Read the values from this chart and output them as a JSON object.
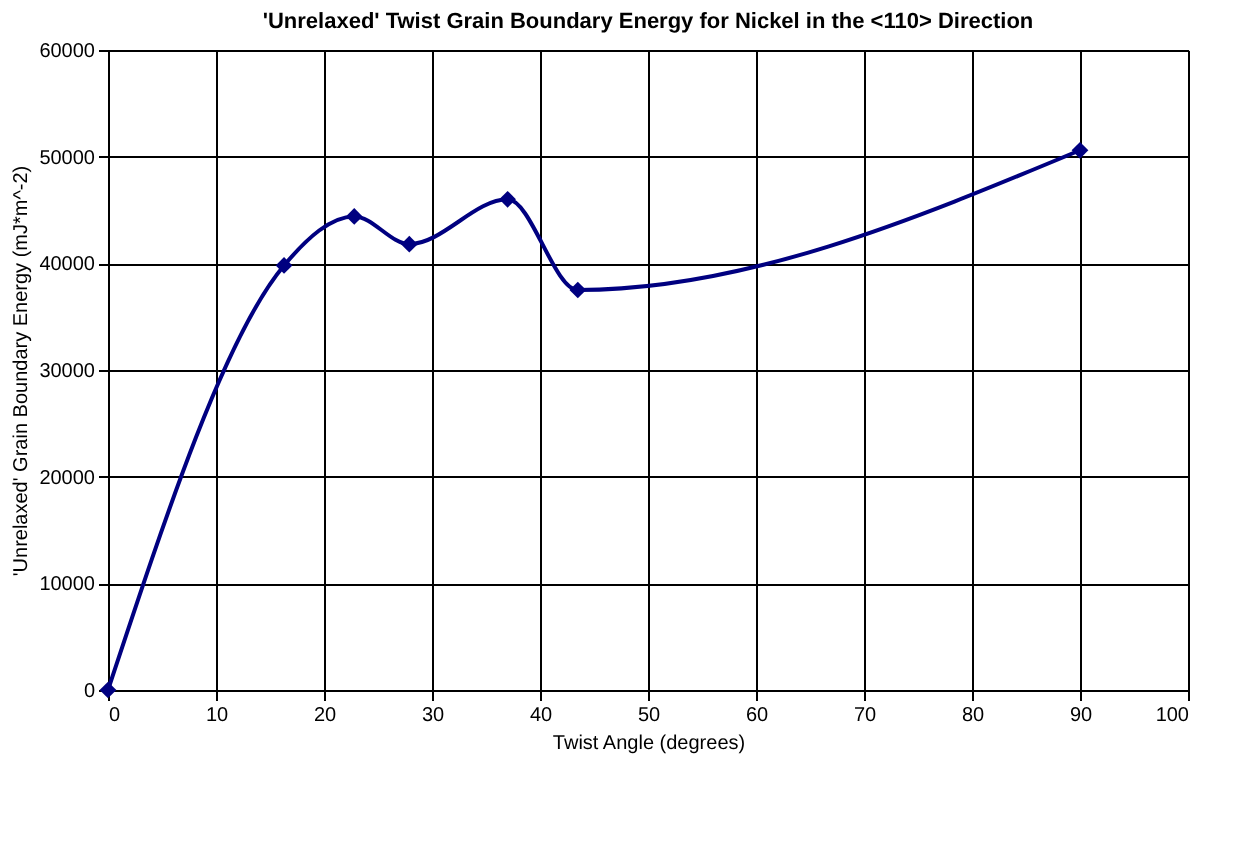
{
  "chart_data": {
    "type": "line",
    "title": "'Unrelaxed' Twist Grain Boundary Energy for Nickel in the <110> Direction",
    "xlabel": "Twist Angle (degrees)",
    "ylabel": "'Unrelaxed' Grain Boundary Energy (mJ*m^-2)",
    "x": [
      0,
      16.3,
      22.8,
      27.9,
      37,
      43.5,
      90
    ],
    "series": [
      {
        "color": "#000080",
        "values": [
          0,
          39800,
          44400,
          41800,
          46000,
          37500,
          50600
        ]
      }
    ],
    "xlim": [
      0,
      100
    ],
    "xticks": [
      0,
      10,
      20,
      30,
      40,
      50,
      60,
      70,
      80,
      90,
      100
    ],
    "ylim": [
      0,
      60000
    ],
    "yticks": [
      0,
      10000,
      20000,
      30000,
      40000,
      50000,
      60000
    ],
    "grid": true,
    "marker": "diamond",
    "line_style": "solid"
  }
}
